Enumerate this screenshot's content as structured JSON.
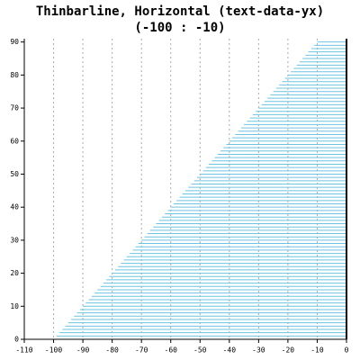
{
  "chart_data": {
    "type": "bar",
    "orientation": "horizontal",
    "title": "Thinbarline, Horizontal (text-data-yx)",
    "subtitle": "(-100 : -10)",
    "y": [
      0,
      1,
      2,
      3,
      4,
      5,
      6,
      7,
      8,
      9,
      10,
      11,
      12,
      13,
      14,
      15,
      16,
      17,
      18,
      19,
      20,
      21,
      22,
      23,
      24,
      25,
      26,
      27,
      28,
      29,
      30,
      31,
      32,
      33,
      34,
      35,
      36,
      37,
      38,
      39,
      40,
      41,
      42,
      43,
      44,
      45,
      46,
      47,
      48,
      49,
      50,
      51,
      52,
      53,
      54,
      55,
      56,
      57,
      58,
      59,
      60,
      61,
      62,
      63,
      64,
      65,
      66,
      67,
      68,
      69,
      70,
      71,
      72,
      73,
      74,
      75,
      76,
      77,
      78,
      79,
      80,
      81,
      82,
      83,
      84,
      85,
      86,
      87,
      88,
      89,
      90
    ],
    "values": [
      -100,
      -99,
      -98,
      -97,
      -96,
      -95,
      -94,
      -93,
      -92,
      -91,
      -90,
      -89,
      -88,
      -87,
      -86,
      -85,
      -84,
      -83,
      -82,
      -81,
      -80,
      -79,
      -78,
      -77,
      -76,
      -75,
      -74,
      -73,
      -72,
      -71,
      -70,
      -69,
      -68,
      -67,
      -66,
      -65,
      -64,
      -63,
      -62,
      -61,
      -60,
      -59,
      -58,
      -57,
      -56,
      -55,
      -54,
      -53,
      -52,
      -51,
      -50,
      -49,
      -48,
      -47,
      -46,
      -45,
      -44,
      -43,
      -42,
      -41,
      -40,
      -39,
      -38,
      -37,
      -36,
      -35,
      -34,
      -33,
      -32,
      -31,
      -30,
      -29,
      -28,
      -27,
      -26,
      -25,
      -24,
      -23,
      -22,
      -21,
      -20,
      -19,
      -18,
      -17,
      -16,
      -15,
      -14,
      -13,
      -12,
      -11,
      -10
    ],
    "color": "#6cc4e0",
    "xlim": [
      -110,
      0
    ],
    "xticks": [
      -110,
      -100,
      -90,
      -80,
      -70,
      -60,
      -50,
      -40,
      -30,
      -20,
      -10,
      0
    ],
    "ylim": [
      0,
      91
    ],
    "yticks": [
      0,
      10,
      20,
      30,
      40,
      50,
      60,
      70,
      80,
      90
    ],
    "grid": "x"
  }
}
